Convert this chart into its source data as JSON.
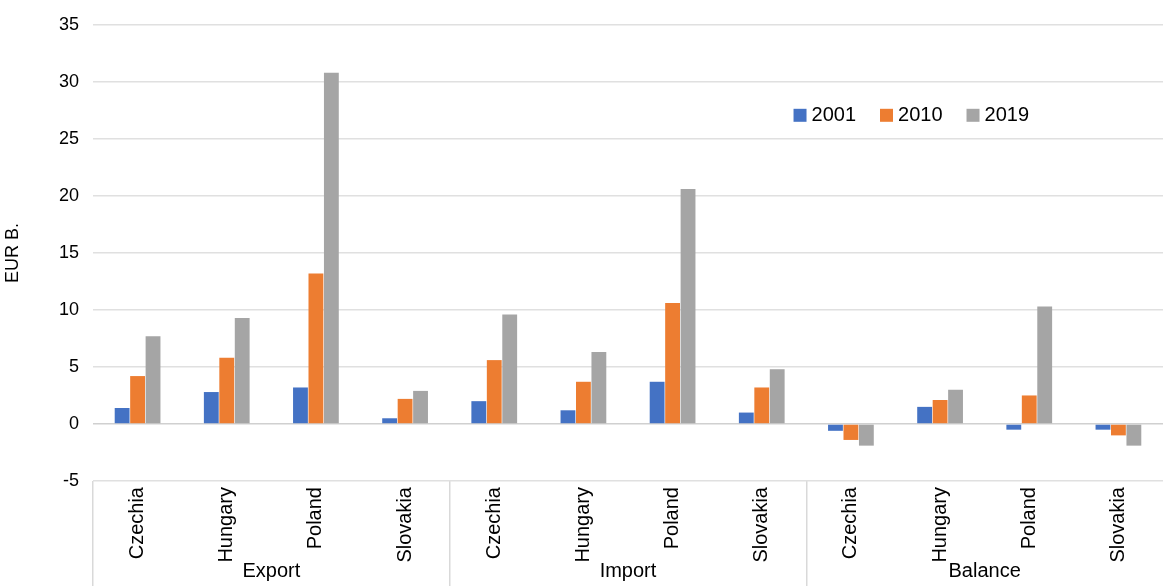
{
  "chart_data": {
    "type": "bar",
    "ylabel": "EUR B.",
    "categories": [
      "Czechia",
      "Hungary",
      "Poland",
      "Slovakia",
      "Czechia",
      "Hungary",
      "Poland",
      "Slovakia",
      "Czechia",
      "Hungary",
      "Poland",
      "Slovakia"
    ],
    "annotations": [
      "Export",
      "Import",
      "Balance"
    ],
    "series": [
      {
        "name": "2001",
        "color": "#4472c4",
        "values": [
          1.4,
          2.8,
          3.2,
          0.5,
          2.0,
          1.2,
          3.7,
          1.0,
          -0.6,
          1.5,
          -0.5,
          -0.5
        ]
      },
      {
        "name": "2010",
        "color": "#ed7d31",
        "values": [
          4.2,
          5.8,
          13.2,
          2.2,
          5.6,
          3.7,
          10.6,
          3.2,
          -1.4,
          2.1,
          2.5,
          -1.0
        ]
      },
      {
        "name": "2019",
        "color": "#a5a5a5",
        "values": [
          7.7,
          9.3,
          30.8,
          2.9,
          9.6,
          6.3,
          20.6,
          4.8,
          -1.9,
          3.0,
          10.3,
          -1.9
        ]
      }
    ],
    "ylim": [
      -5,
      35
    ],
    "yticks": [
      -5,
      0,
      5,
      10,
      15,
      20,
      25,
      30,
      35
    ],
    "grid": "y",
    "legend": "top right"
  }
}
